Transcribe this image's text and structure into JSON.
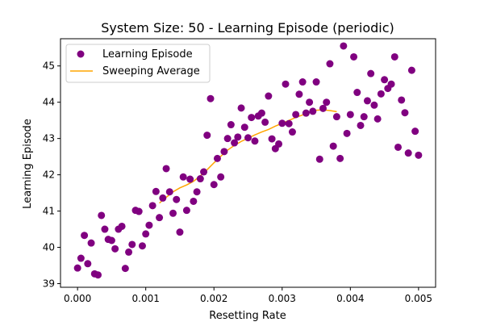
{
  "chart_data": {
    "type": "scatter",
    "title": "System Size: 50 - Learning Episode (periodic)",
    "xlabel": "Resetting Rate",
    "ylabel": "Learning Episode",
    "xlim": [
      -0.00025,
      0.00525
    ],
    "ylim": [
      38.9,
      45.75
    ],
    "xticks": [
      0.0,
      0.001,
      0.002,
      0.003,
      0.004,
      0.005
    ],
    "xtick_labels": [
      "0.000",
      "0.001",
      "0.002",
      "0.003",
      "0.004",
      "0.005"
    ],
    "yticks": [
      39,
      40,
      41,
      42,
      43,
      44,
      45
    ],
    "ytick_labels": [
      "39",
      "40",
      "41",
      "42",
      "43",
      "44",
      "45"
    ],
    "grid": false,
    "legend_position": "upper left",
    "series": [
      {
        "name": "Learning Episode",
        "kind": "scatter",
        "color": "#800080",
        "x": [
          0.0,
          5e-05,
          0.0001,
          0.00015,
          0.0002,
          0.00025,
          0.0003,
          0.00035,
          0.0004,
          0.00045,
          0.0005,
          0.00055,
          0.0006,
          0.00065,
          0.0007,
          0.00075,
          0.0008,
          0.00085,
          0.0009,
          0.00095,
          0.001,
          0.00105,
          0.0011,
          0.00115,
          0.0012,
          0.00125,
          0.0013,
          0.00135,
          0.0014,
          0.00145,
          0.0015,
          0.00155,
          0.0016,
          0.00165,
          0.0017,
          0.00175,
          0.0018,
          0.00185,
          0.0019,
          0.00195,
          0.002,
          0.00205,
          0.0021,
          0.00215,
          0.0022,
          0.00225,
          0.0023,
          0.00235,
          0.0024,
          0.00245,
          0.0025,
          0.00255,
          0.0026,
          0.00265,
          0.0027,
          0.00275,
          0.0028,
          0.00285,
          0.0029,
          0.00295,
          0.003,
          0.00305,
          0.0031,
          0.00315,
          0.0032,
          0.00325,
          0.0033,
          0.00335,
          0.0034,
          0.00345,
          0.0035,
          0.00355,
          0.0036,
          0.00365,
          0.0037,
          0.00375,
          0.0038,
          0.00385,
          0.0039,
          0.00395,
          0.004,
          0.00405,
          0.0041,
          0.00415,
          0.0042,
          0.00425,
          0.0043,
          0.00435,
          0.0044,
          0.00445,
          0.0045,
          0.00455,
          0.0046,
          0.00465,
          0.0047,
          0.00475,
          0.0048,
          0.00485,
          0.0049,
          0.00495,
          0.005
        ],
        "y": [
          39.43,
          39.7,
          40.33,
          39.55,
          40.12,
          39.27,
          39.24,
          40.88,
          40.5,
          40.22,
          40.19,
          39.96,
          40.5,
          40.58,
          39.42,
          39.87,
          40.08,
          41.02,
          40.99,
          40.04,
          40.37,
          40.61,
          41.15,
          41.54,
          40.82,
          41.36,
          42.17,
          41.53,
          40.94,
          41.32,
          40.42,
          41.94,
          41.02,
          41.88,
          41.27,
          41.53,
          41.89,
          42.08,
          43.09,
          44.1,
          41.73,
          42.45,
          41.94,
          42.64,
          43.0,
          43.38,
          42.88,
          43.04,
          43.84,
          43.31,
          43.02,
          43.58,
          42.93,
          43.62,
          43.7,
          43.45,
          44.17,
          42.99,
          42.72,
          42.85,
          43.42,
          44.5,
          43.41,
          43.18,
          43.66,
          44.22,
          44.56,
          43.7,
          44.0,
          43.75,
          44.56,
          42.43,
          43.83,
          44.0,
          45.06,
          42.79,
          43.6,
          42.45,
          45.55,
          43.14,
          43.66,
          45.25,
          44.27,
          43.36,
          43.6,
          44.04,
          44.79,
          43.92,
          43.54,
          44.23,
          44.62,
          44.38,
          44.5,
          45.25,
          42.76,
          44.06,
          43.71,
          42.6,
          44.88,
          43.2,
          42.54
        ]
      },
      {
        "name": "Sweeping Average",
        "kind": "line",
        "color": "#ffa500",
        "x": [
          0.0012,
          0.0013,
          0.0014,
          0.0015,
          0.0016,
          0.0017,
          0.0018,
          0.0019,
          0.002,
          0.0021,
          0.0022,
          0.0023,
          0.0024,
          0.0025,
          0.0026,
          0.0027,
          0.0028,
          0.0029,
          0.003,
          0.0031,
          0.0032,
          0.0033,
          0.0034,
          0.0035,
          0.0036,
          0.0037,
          0.0038
        ],
        "y": [
          41.22,
          41.38,
          41.53,
          41.64,
          41.72,
          41.82,
          41.97,
          42.14,
          42.33,
          42.51,
          42.68,
          42.81,
          42.92,
          43.01,
          43.1,
          43.18,
          43.25,
          43.34,
          43.42,
          43.5,
          43.58,
          43.65,
          43.72,
          43.78,
          43.79,
          43.77,
          43.74
        ]
      }
    ]
  }
}
